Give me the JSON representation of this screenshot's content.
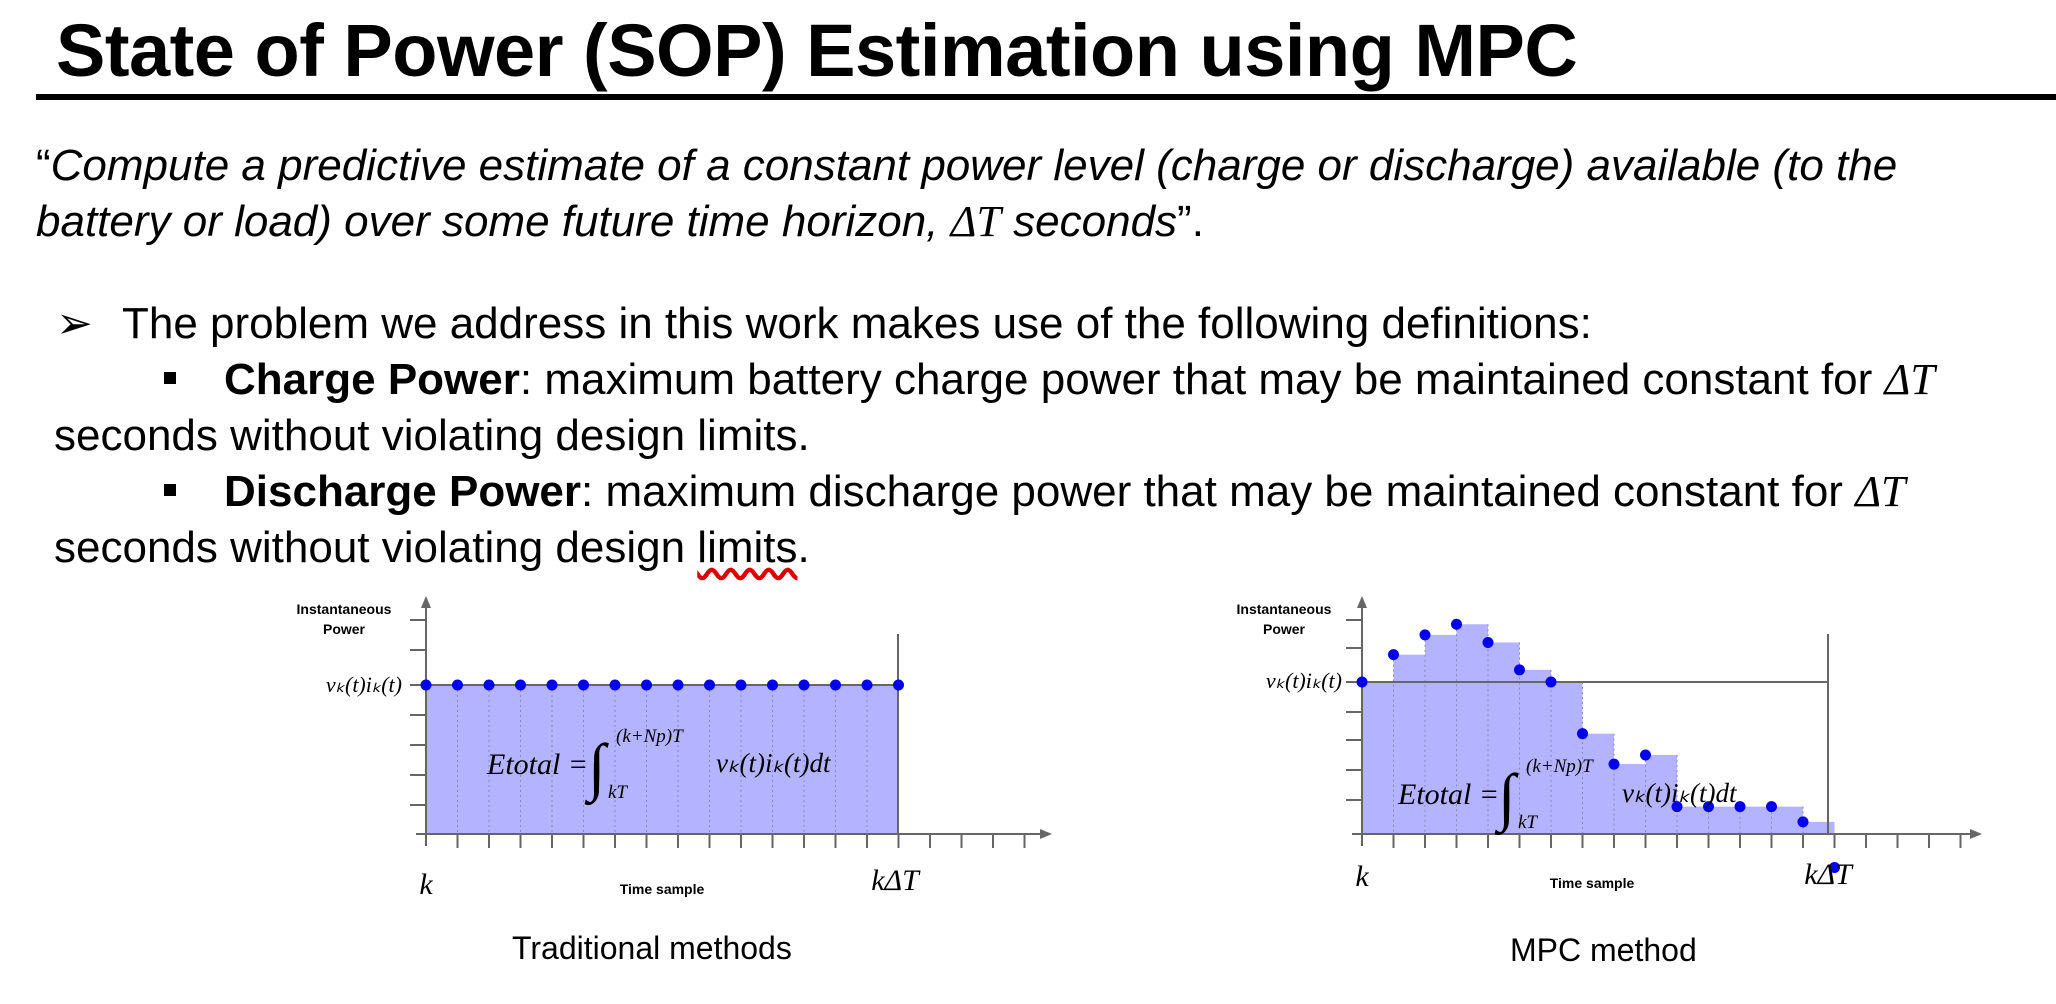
{
  "slide": {
    "title": "State of Power (SOP) Estimation using MPC",
    "quote": {
      "open_mark": "“",
      "text_line1": "Compute a predictive estimate of a constant power level (charge or discharge) available (to the battery or load) over some future time horizon, ",
      "delta_t": "ΔT",
      "text_end": " seconds",
      "close_mark": "”."
    },
    "definitions": {
      "intro": "The problem we address in this work makes use of the following definitions:",
      "items": [
        {
          "term": "Charge Power",
          "text_a": ": maximum battery charge power that may be maintained constant for ",
          "delta_t": "ΔT",
          "text_b": " seconds without violating design limits."
        },
        {
          "term": "Discharge Power",
          "text_a": ": maximum discharge power that may be maintained constant for ",
          "delta_t": "ΔT",
          "text_b": " seconds without violating design ",
          "text_c": "limits",
          "text_d": "."
        }
      ]
    }
  },
  "diagrams": {
    "traditional": {
      "caption": "Traditional methods",
      "y_label_line1": "Instantaneous",
      "y_label_line2": "Power",
      "level_label": "vₖ(t)iₖ(t)",
      "x_label": "Time sample",
      "x_start": "k",
      "x_end": "kΔT",
      "formula_lhs": "Etotal =",
      "formula_upper": "(k+Np)T",
      "formula_lower": "kT",
      "formula_integrand": "vₖ(t)iₖ(t)dt",
      "samples": [
        1,
        1,
        1,
        1,
        1,
        1,
        1,
        1,
        1,
        1,
        1,
        1,
        1,
        1,
        1,
        1
      ],
      "fill_color": "#b3b3ff",
      "point_color": "#0000ee"
    },
    "mpc": {
      "caption": "MPC method",
      "y_label_line1": "Instantaneous",
      "y_label_line2": "Power",
      "level_label": "vₖ(t)iₖ(t)",
      "x_label": "Time sample",
      "x_start": "k",
      "x_end": "kΔT",
      "formula_lhs": "Etotal =",
      "formula_upper": "(k+Np)T",
      "formula_lower": "kT",
      "formula_integrand": "vₖ(t)iₖ(t)dt",
      "samples": [
        1.0,
        1.18,
        1.31,
        1.38,
        1.26,
        1.08,
        1.0,
        0.66,
        0.46,
        0.52,
        0.18,
        0.18,
        0.18,
        0.18,
        0.08,
        -0.22
      ],
      "fill_color": "#b3b3ff",
      "point_color": "#0000ee"
    }
  }
}
